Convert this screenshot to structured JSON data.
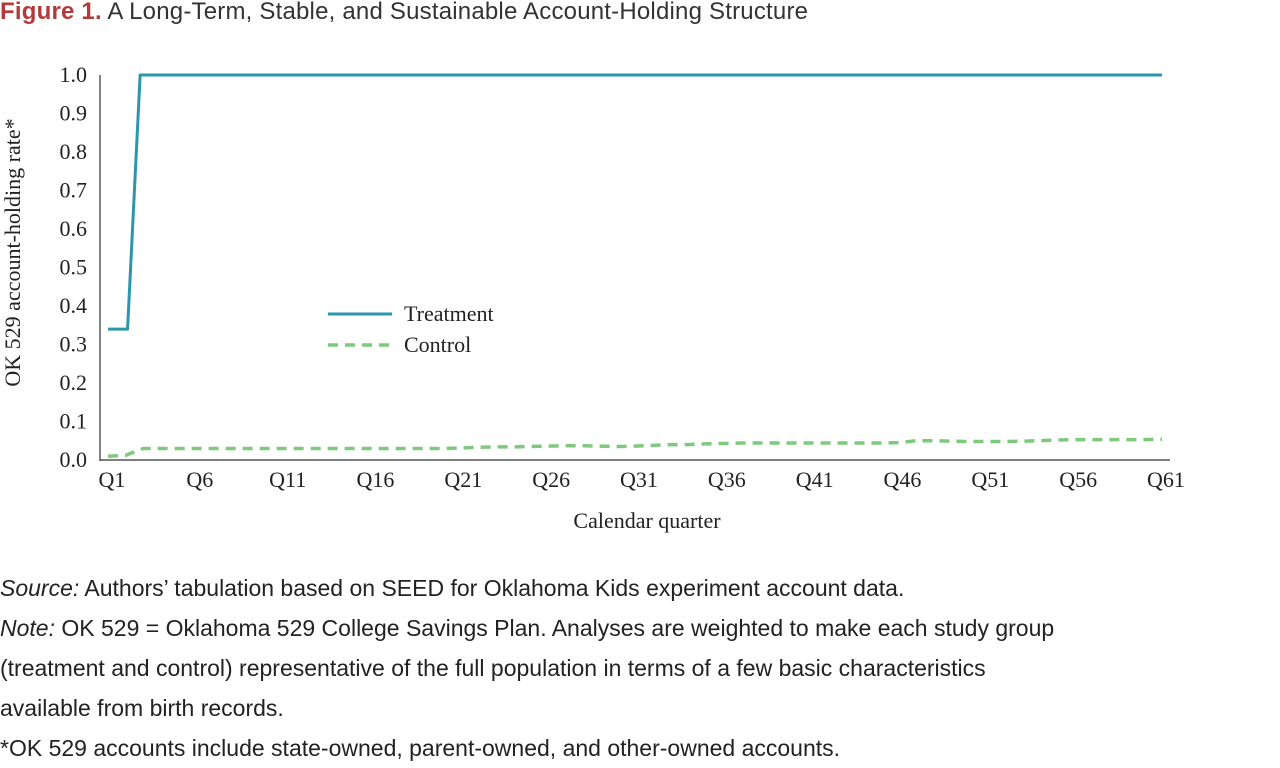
{
  "figure": {
    "label": "Figure 1.",
    "title": "A Long-Term, Stable, and Sustainable Account-Holding Structure"
  },
  "colors": {
    "title_label": "#b23a3a",
    "treatment": "#2e96ac",
    "control": "#7fc97f",
    "axis": "#333333"
  },
  "chart_data": {
    "type": "line",
    "title": "",
    "xlabel": "Calendar quarter",
    "ylabel": "OK 529 account-holding rate*",
    "ylim": [
      0,
      1.0
    ],
    "yticks": [
      "0.0",
      "0.1",
      "0.2",
      "0.3",
      "0.4",
      "0.5",
      "0.6",
      "0.7",
      "0.8",
      "0.9",
      "1.0"
    ],
    "xticks": [
      "Q1",
      "Q6",
      "Q11",
      "Q16",
      "Q21",
      "Q26",
      "Q31",
      "Q36",
      "Q41",
      "Q46",
      "Q51",
      "Q56",
      "Q61"
    ],
    "grid": false,
    "legend_position": "center-left",
    "x": [
      "Q1",
      "Q2",
      "Q3",
      "Q4",
      "Q5",
      "Q6",
      "Q7",
      "Q8",
      "Q9",
      "Q10",
      "Q11",
      "Q12",
      "Q13",
      "Q14",
      "Q15",
      "Q16",
      "Q17",
      "Q18",
      "Q19",
      "Q20",
      "Q21",
      "Q22",
      "Q23",
      "Q24",
      "Q25",
      "Q26",
      "Q27",
      "Q28",
      "Q29",
      "Q30",
      "Q31",
      "Q32",
      "Q33",
      "Q34",
      "Q35",
      "Q36",
      "Q37",
      "Q38",
      "Q39",
      "Q40",
      "Q41",
      "Q42",
      "Q43",
      "Q44",
      "Q45",
      "Q46",
      "Q47",
      "Q48",
      "Q49",
      "Q50",
      "Q51",
      "Q52",
      "Q53",
      "Q54",
      "Q55",
      "Q56",
      "Q57",
      "Q58",
      "Q59",
      "Q60",
      "Q61"
    ],
    "series": [
      {
        "name": "Treatment",
        "style": "solid",
        "values": [
          0.34,
          0.34,
          1.0,
          1.0,
          1.0,
          1.0,
          1.0,
          1.0,
          1.0,
          1.0,
          1.0,
          1.0,
          1.0,
          1.0,
          1.0,
          1.0,
          1.0,
          1.0,
          1.0,
          1.0,
          1.0,
          1.0,
          1.0,
          1.0,
          1.0,
          1.0,
          1.0,
          1.0,
          1.0,
          1.0,
          1.0,
          1.0,
          1.0,
          1.0,
          1.0,
          1.0,
          1.0,
          1.0,
          1.0,
          1.0,
          1.0,
          1.0,
          1.0,
          1.0,
          1.0,
          1.0,
          1.0,
          1.0,
          1.0,
          1.0,
          1.0,
          1.0,
          1.0,
          1.0,
          1.0,
          1.0,
          1.0,
          1.0,
          1.0,
          1.0,
          1.0
        ]
      },
      {
        "name": "Control",
        "style": "dashed",
        "values": [
          0.01,
          0.012,
          0.03,
          0.03,
          0.03,
          0.03,
          0.03,
          0.03,
          0.03,
          0.03,
          0.03,
          0.03,
          0.03,
          0.03,
          0.03,
          0.03,
          0.03,
          0.03,
          0.03,
          0.03,
          0.031,
          0.033,
          0.034,
          0.034,
          0.035,
          0.036,
          0.037,
          0.037,
          0.036,
          0.035,
          0.036,
          0.038,
          0.04,
          0.04,
          0.042,
          0.043,
          0.044,
          0.044,
          0.044,
          0.044,
          0.044,
          0.044,
          0.044,
          0.044,
          0.044,
          0.045,
          0.05,
          0.05,
          0.049,
          0.048,
          0.048,
          0.048,
          0.049,
          0.05,
          0.052,
          0.053,
          0.053,
          0.053,
          0.053,
          0.053,
          0.054
        ]
      }
    ]
  },
  "notes": {
    "source_label": "Source:",
    "source_text": " Authors’ tabulation based on SEED for Oklahoma Kids experiment account data.",
    "note_label": "Note:",
    "note_line1": " OK 529 = Oklahoma 529 College Savings Plan. Analyses are weighted to make each study group",
    "note_line2": "(treatment and control) representative of the full population in terms of a few basic characteristics",
    "note_line3": "available from birth records.",
    "footnote": "*OK 529 accounts include state-owned, parent-owned, and other-owned accounts."
  }
}
